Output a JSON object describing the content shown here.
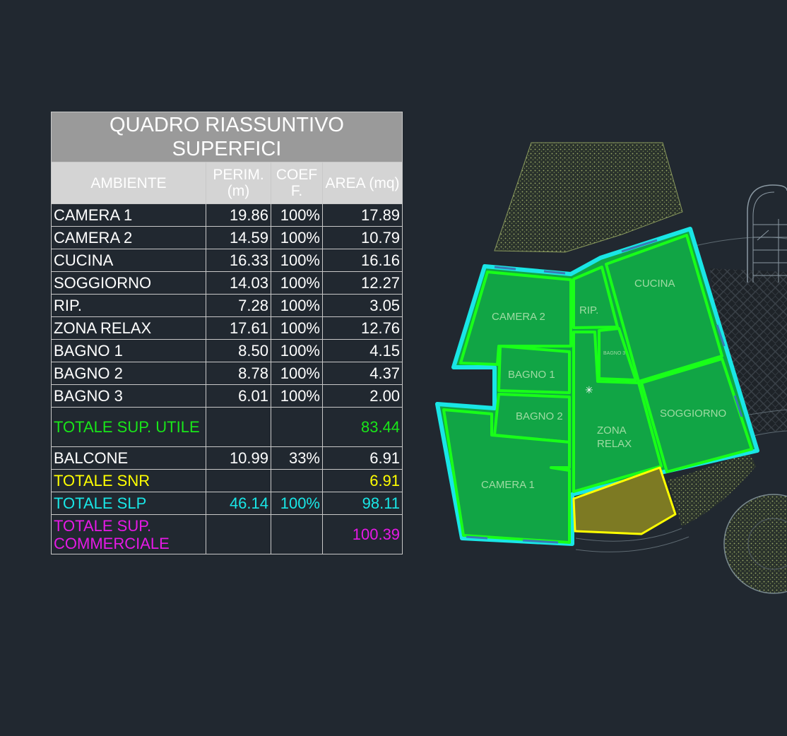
{
  "table": {
    "title": "QUADRO RIASSUNTIVO SUPERFICI",
    "headers": {
      "ambiente": "AMBIENTE",
      "perim": "PERIM. (m)",
      "coef": "COEF F.",
      "area": "AREA (mq)"
    },
    "rows": [
      {
        "name": "CAMERA 1",
        "perim": "19.86",
        "coef": "100%",
        "area": "17.89"
      },
      {
        "name": "CAMERA 2",
        "perim": "14.59",
        "coef": "100%",
        "area": "10.79"
      },
      {
        "name": "CUCINA",
        "perim": "16.33",
        "coef": "100%",
        "area": "16.16"
      },
      {
        "name": "SOGGIORNO",
        "perim": "14.03",
        "coef": "100%",
        "area": "12.27"
      },
      {
        "name": "RIP.",
        "perim": "7.28",
        "coef": "100%",
        "area": "3.05"
      },
      {
        "name": "ZONA RELAX",
        "perim": "17.61",
        "coef": "100%",
        "area": "12.76"
      },
      {
        "name": "BAGNO 1",
        "perim": "8.50",
        "coef": "100%",
        "area": "4.15"
      },
      {
        "name": "BAGNO 2",
        "perim": "8.78",
        "coef": "100%",
        "area": "4.37"
      },
      {
        "name": "BAGNO 3",
        "perim": "6.01",
        "coef": "100%",
        "area": "2.00"
      }
    ],
    "totale_utile": {
      "name": "TOTALE SUP. UTILE",
      "perim": "",
      "coef": "",
      "area": "83.44"
    },
    "balcone": {
      "name": "BALCONE",
      "perim": "10.99",
      "coef": "33%",
      "area": "6.91"
    },
    "totale_snr": {
      "name": "TOTALE SNR",
      "perim": "",
      "coef": "",
      "area": "6.91"
    },
    "totale_slp": {
      "name": "TOTALE SLP",
      "perim": "46.14",
      "coef": "100%",
      "area": "98.11"
    },
    "totale_commerciale": {
      "name": "TOTALE SUP. COMMERCIALE",
      "perim": "",
      "coef": "",
      "area": "100.39"
    }
  },
  "plan": {
    "labels": {
      "camera2": "CAMERA 2",
      "rip": "RIP.",
      "cucina": "CUCINA",
      "bagno3": "BAGNO 3",
      "bagno1": "BAGNO 1",
      "bagno2": "BAGNO 2",
      "zona_relax_1": "ZONA",
      "zona_relax_2": "RELAX",
      "soggiorno": "SOGGIORNO",
      "camera1": "CAMERA 1"
    }
  },
  "colors": {
    "background": "#212830",
    "room_fill": "#11a545",
    "room_outline": "#19ff19",
    "slp_outline": "#19e6e6",
    "balcony_fill": "#7d7a23",
    "balcony_outline": "#ffff00",
    "utile": "#19e619",
    "snr": "#ffff00",
    "slp": "#19e6e6",
    "commerciale": "#e619e6"
  }
}
